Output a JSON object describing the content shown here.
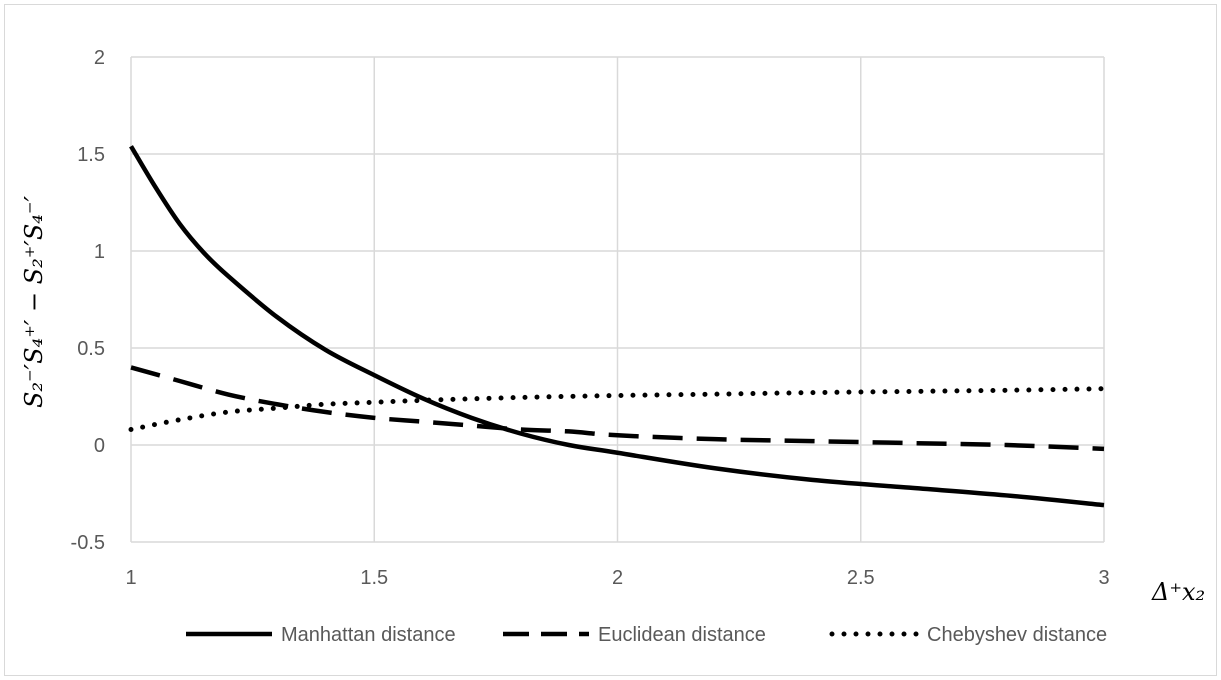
{
  "chart_data": {
    "type": "line",
    "xlabel": "Δ⁺x₂",
    "ylabel": "S₂⁻′S₄⁺′ − S₂⁺′S₄⁻′",
    "xlim": [
      1,
      3
    ],
    "ylim": [
      -0.5,
      2
    ],
    "x_ticks": [
      "1",
      "1.5",
      "2",
      "2.5",
      "3"
    ],
    "y_ticks": [
      "2",
      "1.5",
      "1",
      "0.5",
      "0",
      "-0.5"
    ],
    "grid": true,
    "legend_position": "bottom",
    "series": [
      {
        "name": "Manhattan distance",
        "style": "solid",
        "color": "#000000",
        "x": [
          1.0,
          1.05,
          1.1,
          1.15,
          1.2,
          1.3,
          1.4,
          1.5,
          1.6,
          1.7,
          1.8,
          1.9,
          2.0,
          2.2,
          2.4,
          2.6,
          2.8,
          3.0
        ],
        "y": [
          1.54,
          1.33,
          1.14,
          0.99,
          0.87,
          0.66,
          0.49,
          0.36,
          0.24,
          0.14,
          0.06,
          0.0,
          -0.04,
          -0.12,
          -0.18,
          -0.22,
          -0.26,
          -0.31
        ]
      },
      {
        "name": "Euclidean distance",
        "style": "dashed",
        "color": "#000000",
        "x": [
          1.0,
          1.1,
          1.2,
          1.3,
          1.4,
          1.5,
          1.6,
          1.7,
          1.8,
          1.9,
          2.0,
          2.2,
          2.4,
          2.6,
          2.8,
          3.0
        ],
        "y": [
          0.4,
          0.33,
          0.26,
          0.21,
          0.17,
          0.14,
          0.12,
          0.1,
          0.08,
          0.07,
          0.05,
          0.03,
          0.02,
          0.01,
          0.0,
          -0.02
        ]
      },
      {
        "name": "Chebyshev distance",
        "style": "dotted",
        "color": "#000000",
        "x": [
          1.0,
          1.1,
          1.2,
          1.3,
          1.4,
          1.5,
          1.6,
          1.8,
          2.0,
          2.2,
          2.4,
          2.6,
          2.8,
          3.0
        ],
        "y": [
          0.08,
          0.13,
          0.17,
          0.19,
          0.21,
          0.22,
          0.23,
          0.245,
          0.255,
          0.262,
          0.27,
          0.276,
          0.282,
          0.29
        ]
      }
    ]
  }
}
